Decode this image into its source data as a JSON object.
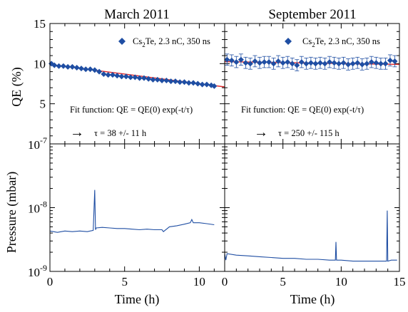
{
  "chart_data": [
    {
      "type": "scatter",
      "panel": "top-left",
      "title": "March 2011",
      "ylabel": "QE (%)",
      "xlim": [
        0,
        11.7
      ],
      "ylim": [
        0,
        15
      ],
      "yticks": [
        {
          "v": 15,
          "t": "15"
        },
        {
          "v": 10,
          "t": "10"
        },
        {
          "v": 5,
          "t": "5"
        }
      ],
      "legend": {
        "label_main": "Cs",
        "label_sub": "2",
        "label_rest": "Te, 2.3 nC, 350 ns",
        "position": "top-right"
      },
      "annotation": {
        "fit": "Fit function: QE = QE(0) exp(-t/τ)",
        "arrow": "→",
        "tau": "τ = 38 +/- 11 h"
      },
      "series": [
        {
          "name": "Cs2Te, 2.3 nC, 350 ns",
          "x": [
            0.1,
            0.3,
            0.6,
            0.9,
            1.2,
            1.5,
            1.8,
            2.1,
            2.4,
            2.7,
            3.0,
            3.3,
            3.6,
            3.9,
            4.2,
            4.5,
            4.8,
            5.1,
            5.4,
            5.7,
            6.0,
            6.3,
            6.6,
            6.9,
            7.2,
            7.5,
            7.8,
            8.1,
            8.4,
            8.7,
            9.0,
            9.3,
            9.6,
            9.9,
            10.2,
            10.5,
            10.8,
            11.0
          ],
          "y": [
            10.0,
            9.8,
            9.7,
            9.7,
            9.6,
            9.6,
            9.5,
            9.4,
            9.3,
            9.3,
            9.2,
            9.0,
            8.7,
            8.6,
            8.6,
            8.5,
            8.4,
            8.4,
            8.3,
            8.3,
            8.2,
            8.2,
            8.1,
            8.0,
            8.0,
            7.9,
            7.9,
            7.8,
            7.8,
            7.7,
            7.7,
            7.6,
            7.6,
            7.5,
            7.4,
            7.4,
            7.3,
            7.2
          ],
          "color": "#1f4ea3"
        }
      ],
      "fit_line": {
        "x": [
          0,
          11.7
        ],
        "y": [
          9.9,
          7.1
        ],
        "color": "#e0292b"
      }
    },
    {
      "type": "scatter",
      "panel": "top-right",
      "title": "September 2011",
      "xlim": [
        0,
        15
      ],
      "ylim": [
        0,
        15
      ],
      "legend": {
        "label_main": "Cs",
        "label_sub": "2",
        "label_rest": "Te, 2.3 nC, 350 ns",
        "position": "top-right"
      },
      "annotation": {
        "fit": "Fit function: QE = QE(0) exp(-t/τ)",
        "arrow": "→",
        "tau": "τ = 250 +/- 115 h"
      },
      "series": [
        {
          "name": "Cs2Te, 2.3 nC, 350 ns",
          "x": [
            0.2,
            0.6,
            1.0,
            1.4,
            1.8,
            2.2,
            2.6,
            3.0,
            3.4,
            3.8,
            4.2,
            4.6,
            5.0,
            5.4,
            5.8,
            6.2,
            6.6,
            7.0,
            7.4,
            7.8,
            8.2,
            8.6,
            9.0,
            9.4,
            9.8,
            10.2,
            10.6,
            11.0,
            11.4,
            11.8,
            12.2,
            12.6,
            13.0,
            13.4,
            13.8,
            14.2,
            14.6
          ],
          "y": [
            10.5,
            10.4,
            10.2,
            10.5,
            10.1,
            10.0,
            10.3,
            10.1,
            10.2,
            10.2,
            10.0,
            10.3,
            10.1,
            10.2,
            10.0,
            9.8,
            10.2,
            10.0,
            10.1,
            10.0,
            10.1,
            10.0,
            10.2,
            10.1,
            10.0,
            10.1,
            9.9,
            10.0,
            10.1,
            9.9,
            10.0,
            10.2,
            10.1,
            10.0,
            10.0,
            10.4,
            10.3
          ],
          "err": 0.7,
          "color": "#1f4ea3"
        }
      ],
      "fit_line": {
        "x": [
          0,
          15
        ],
        "y": [
          10.25,
          9.9
        ],
        "color": "#e0292b"
      }
    },
    {
      "type": "line",
      "panel": "bottom-left",
      "xlabel": "Time (h)",
      "ylabel": "Pressure (mbar)",
      "xlim": [
        0,
        11.7
      ],
      "ylim_log10": [
        -9,
        -7
      ],
      "yscale": "log",
      "xticks": [
        {
          "v": 0,
          "t": "0"
        },
        {
          "v": 5,
          "t": "5"
        },
        {
          "v": 10,
          "t": "10"
        }
      ],
      "yticks": [
        {
          "v": -7,
          "b": "10",
          "e": "-7"
        },
        {
          "v": -8,
          "b": "10",
          "e": "-8"
        },
        {
          "v": -9,
          "b": "10",
          "e": "-9"
        }
      ],
      "series": [
        {
          "x": [
            0,
            0.5,
            1.0,
            1.5,
            2.0,
            2.5,
            2.9,
            3.0,
            3.05,
            3.1,
            3.5,
            4.0,
            4.5,
            5.0,
            5.5,
            6.0,
            6.5,
            7.0,
            7.5,
            7.6,
            8.0,
            8.5,
            9.0,
            9.4,
            9.5,
            9.6,
            10.0,
            10.5,
            11.0
          ],
          "y": [
            4.3e-09,
            4.1e-09,
            4.3e-09,
            4.2e-09,
            4.3e-09,
            4.2e-09,
            4.4e-09,
            1.9e-08,
            4.5e-09,
            4.8e-09,
            4.9e-09,
            4.8e-09,
            4.7e-09,
            4.7e-09,
            4.6e-09,
            4.5e-09,
            4.6e-09,
            4.5e-09,
            4.5e-09,
            4.2e-09,
            5e-09,
            5.2e-09,
            5.5e-09,
            5.8e-09,
            6.5e-09,
            5.8e-09,
            5.8e-09,
            5.6e-09,
            5.4e-09
          ],
          "color": "#1f4ea3"
        }
      ]
    },
    {
      "type": "line",
      "panel": "bottom-right",
      "xlabel": "Time (h)",
      "xlim": [
        0,
        15
      ],
      "ylim_log10": [
        -9,
        -7
      ],
      "yscale": "log",
      "xticks": [
        {
          "v": 0,
          "t": "0"
        },
        {
          "v": 5,
          "t": "5"
        },
        {
          "v": 10,
          "t": "10"
        },
        {
          "v": 15,
          "t": "15"
        }
      ],
      "series": [
        {
          "x": [
            0,
            0.1,
            0.2,
            1,
            2,
            3,
            4,
            5,
            6,
            7,
            8,
            9,
            9.5,
            9.55,
            9.6,
            10,
            11,
            12,
            13,
            13.5,
            13.9,
            13.95,
            14,
            14.3,
            14.8
          ],
          "y": [
            1.9e-09,
            1.5e-09,
            1.9e-09,
            1.8e-09,
            1.75e-09,
            1.7e-09,
            1.65e-09,
            1.6e-09,
            1.6e-09,
            1.55e-09,
            1.55e-09,
            1.5e-09,
            1.5e-09,
            2.9e-09,
            1.5e-09,
            1.5e-09,
            1.45e-09,
            1.45e-09,
            1.45e-09,
            1.45e-09,
            1.45e-09,
            9e-09,
            1.45e-09,
            1.5e-09,
            1.5e-09
          ],
          "color": "#1f4ea3"
        }
      ]
    }
  ]
}
